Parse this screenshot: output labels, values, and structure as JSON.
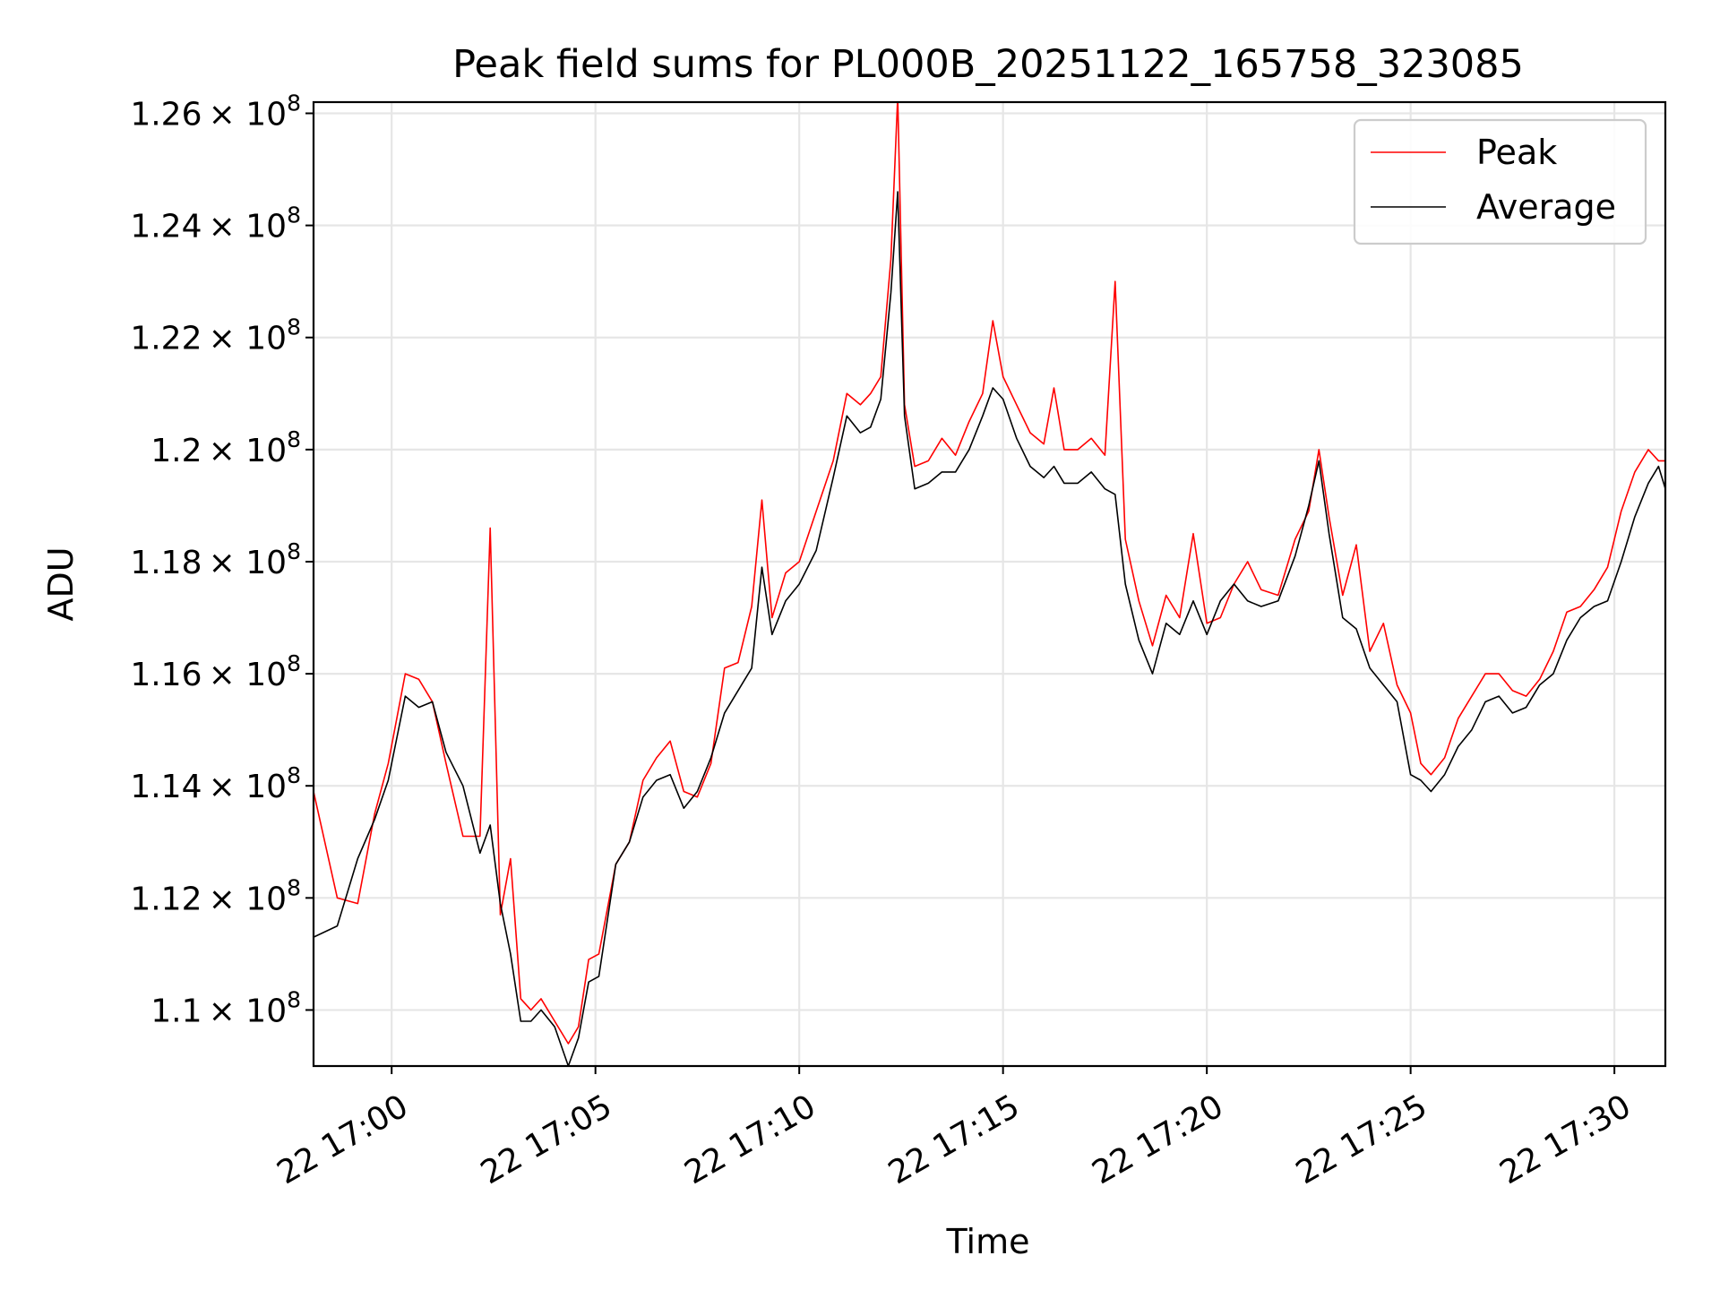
{
  "chart_data": {
    "type": "line",
    "title": "Peak field sums for PL000B_20251122_165758_323085",
    "xlabel": "Time",
    "ylabel": "ADU",
    "grid": true,
    "legend_position": "top-right",
    "x_start": "2025-11-22 16:58:05",
    "x_end": "2025-11-22 17:31:15",
    "xlim": [
      "22 16:58:05",
      "22 17:31:15"
    ],
    "ylim": [
      109000000,
      126200000
    ],
    "x_ticks": [
      {
        "value": "2025-11-22 17:00:00",
        "label": "22 17:00"
      },
      {
        "value": "2025-11-22 17:05:00",
        "label": "22 17:05"
      },
      {
        "value": "2025-11-22 17:10:00",
        "label": "22 17:10"
      },
      {
        "value": "2025-11-22 17:15:00",
        "label": "22 17:15"
      },
      {
        "value": "2025-11-22 17:20:00",
        "label": "22 17:20"
      },
      {
        "value": "2025-11-22 17:25:00",
        "label": "22 17:25"
      },
      {
        "value": "2025-11-22 17:30:00",
        "label": "22 17:30"
      }
    ],
    "y_ticks": [
      {
        "value": 110000000,
        "mantissa": "1.1"
      },
      {
        "value": 112000000,
        "mantissa": "1.12"
      },
      {
        "value": 114000000,
        "mantissa": "1.14"
      },
      {
        "value": 116000000,
        "mantissa": "1.16"
      },
      {
        "value": 118000000,
        "mantissa": "1.18"
      },
      {
        "value": 120000000,
        "mantissa": "1.2"
      },
      {
        "value": 122000000,
        "mantissa": "1.22"
      },
      {
        "value": 124000000,
        "mantissa": "1.24"
      },
      {
        "value": 126000000,
        "mantissa": "1.26"
      }
    ],
    "y_tick_base": "× 10",
    "y_tick_exponent": "8",
    "x": [
      "16:58:05",
      "16:58:40",
      "16:59:10",
      "16:59:35",
      "16:59:55",
      "17:00:20",
      "17:00:40",
      "17:01:00",
      "17:01:20",
      "17:01:45",
      "17:02:10",
      "17:02:25",
      "17:02:40",
      "17:02:55",
      "17:03:10",
      "17:03:25",
      "17:03:40",
      "17:04:00",
      "17:04:20",
      "17:04:35",
      "17:04:50",
      "17:05:05",
      "17:05:30",
      "17:05:50",
      "17:06:10",
      "17:06:30",
      "17:06:50",
      "17:07:10",
      "17:07:30",
      "17:07:50",
      "17:08:10",
      "17:08:30",
      "17:08:50",
      "17:09:05",
      "17:09:20",
      "17:09:40",
      "17:10:00",
      "17:10:25",
      "17:10:50",
      "17:11:10",
      "17:11:30",
      "17:11:45",
      "17:12:00",
      "17:12:15",
      "17:12:25",
      "17:12:35",
      "17:12:50",
      "17:13:10",
      "17:13:30",
      "17:13:50",
      "17:14:10",
      "17:14:30",
      "17:14:45",
      "17:15:00",
      "17:15:20",
      "17:15:40",
      "17:16:00",
      "17:16:15",
      "17:16:30",
      "17:16:50",
      "17:17:10",
      "17:17:30",
      "17:17:45",
      "17:18:00",
      "17:18:20",
      "17:18:40",
      "17:19:00",
      "17:19:20",
      "17:19:40",
      "17:20:00",
      "17:20:20",
      "17:20:40",
      "17:21:00",
      "17:21:20",
      "17:21:45",
      "17:22:10",
      "17:22:30",
      "17:22:45",
      "17:23:00",
      "17:23:20",
      "17:23:40",
      "17:24:00",
      "17:24:20",
      "17:24:40",
      "17:25:00",
      "17:25:15",
      "17:25:30",
      "17:25:50",
      "17:26:10",
      "17:26:30",
      "17:26:50",
      "17:27:10",
      "17:27:30",
      "17:27:50",
      "17:28:10",
      "17:28:30",
      "17:28:50",
      "17:29:10",
      "17:29:30",
      "17:29:50",
      "17:30:10",
      "17:30:30",
      "17:30:50",
      "17:31:05",
      "17:31:15"
    ],
    "series": [
      {
        "name": "Peak",
        "color": "#ff0000",
        "values": [
          113900000,
          112000000,
          111900000,
          113500000,
          114400000,
          116000000,
          115900000,
          115500000,
          114400000,
          113100000,
          113100000,
          118600000,
          111700000,
          112700000,
          110200000,
          110000000,
          110200000,
          109800000,
          109400000,
          109700000,
          110900000,
          111000000,
          112600000,
          113000000,
          114100000,
          114500000,
          114800000,
          113900000,
          113800000,
          114400000,
          116100000,
          116200000,
          117200000,
          119100000,
          117000000,
          117800000,
          118000000,
          118900000,
          119800000,
          121000000,
          120800000,
          121000000,
          121300000,
          123400000,
          126300000,
          120800000,
          119700000,
          119800000,
          120200000,
          119900000,
          120500000,
          121000000,
          122300000,
          121300000,
          120800000,
          120300000,
          120100000,
          121100000,
          120000000,
          120000000,
          120200000,
          119900000,
          123000000,
          118400000,
          117300000,
          116500000,
          117400000,
          117000000,
          118500000,
          116900000,
          117000000,
          117600000,
          118000000,
          117500000,
          117400000,
          118400000,
          118900000,
          120000000,
          118800000,
          117400000,
          118300000,
          116400000,
          116900000,
          115800000,
          115300000,
          114400000,
          114200000,
          114500000,
          115200000,
          115600000,
          116000000,
          116000000,
          115700000,
          115600000,
          115900000,
          116400000,
          117100000,
          117200000,
          117500000,
          117900000,
          118900000,
          119600000,
          120000000,
          119800000,
          119800000
        ]
      },
      {
        "name": "Average",
        "color": "#000000",
        "values": [
          111300000,
          111500000,
          112700000,
          113400000,
          114100000,
          115600000,
          115400000,
          115500000,
          114600000,
          114000000,
          112800000,
          113300000,
          111900000,
          111000000,
          109800000,
          109800000,
          110000000,
          109700000,
          109000000,
          109500000,
          110500000,
          110600000,
          112600000,
          113000000,
          113800000,
          114100000,
          114200000,
          113600000,
          113900000,
          114500000,
          115300000,
          115700000,
          116100000,
          117900000,
          116700000,
          117300000,
          117600000,
          118200000,
          119500000,
          120600000,
          120300000,
          120400000,
          120900000,
          122800000,
          124600000,
          120600000,
          119300000,
          119400000,
          119600000,
          119600000,
          120000000,
          120600000,
          121100000,
          120900000,
          120200000,
          119700000,
          119500000,
          119700000,
          119400000,
          119400000,
          119600000,
          119300000,
          119200000,
          117600000,
          116600000,
          116000000,
          116900000,
          116700000,
          117300000,
          116700000,
          117300000,
          117600000,
          117300000,
          117200000,
          117300000,
          118100000,
          119000000,
          119800000,
          118500000,
          117000000,
          116800000,
          116100000,
          115800000,
          115500000,
          114200000,
          114100000,
          113900000,
          114200000,
          114700000,
          115000000,
          115500000,
          115600000,
          115300000,
          115400000,
          115800000,
          116000000,
          116600000,
          117000000,
          117200000,
          117300000,
          118000000,
          118800000,
          119400000,
          119700000,
          119300000
        ]
      }
    ]
  }
}
